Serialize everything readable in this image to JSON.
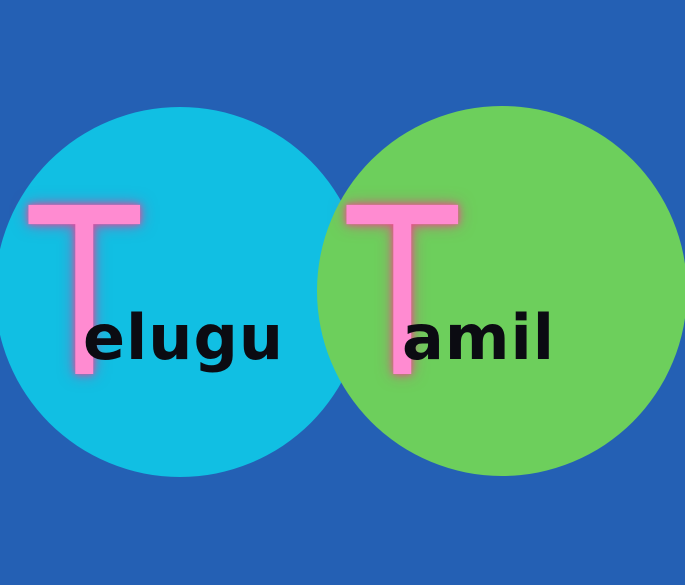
{
  "background_color": "#2460b4",
  "circles": [
    {
      "color": "#11bfe3",
      "initial": "T",
      "rest": "elugu"
    },
    {
      "color": "#6dcf5c",
      "initial": "T",
      "rest": "amil"
    }
  ],
  "initial_color": "#ff8bd1",
  "text_color": "#0b0b12"
}
